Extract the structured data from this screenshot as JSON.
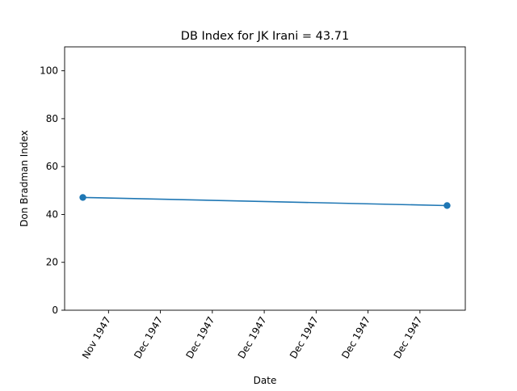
{
  "chart_data": {
    "type": "line",
    "title": "DB Index for JK Irani = 43.71",
    "xlabel": "Date",
    "ylabel": "Don Bradman Index",
    "x_ticks": [
      "Nov 1947",
      "Dec 1947",
      "Dec 1947",
      "Dec 1947",
      "Dec 1947",
      "Dec 1947",
      "Dec 1947"
    ],
    "y_ticks": [
      "0",
      "20",
      "40",
      "60",
      "80",
      "100"
    ],
    "ylim": [
      0,
      110
    ],
    "grid": false,
    "series": [
      {
        "values": [
          {
            "x": "1947-11-28",
            "y": 47.1
          },
          {
            "x": "1948-01-03",
            "y": 43.71
          }
        ]
      }
    ],
    "colors": {
      "line": "#1f77b4",
      "axes": "#000000",
      "background": "#ffffff"
    }
  }
}
